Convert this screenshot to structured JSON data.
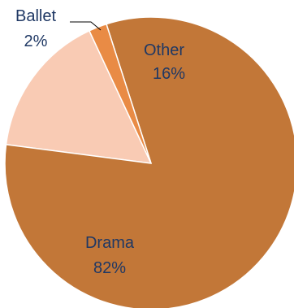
{
  "chart_data": {
    "type": "pie",
    "start_angle_deg": -25,
    "direction": "counterclockwise",
    "slices": [
      {
        "category": "Other",
        "value": 16,
        "value_label": "16%",
        "color": "#f9cbb4",
        "label_color": "#1f3864"
      },
      {
        "category": "Drama",
        "value": 82,
        "value_label": "82%",
        "color": "#c27738",
        "label_color": "#1f3864"
      },
      {
        "category": "Ballet",
        "value": 2,
        "value_label": "2%",
        "color": "#e98b45",
        "label_color": "#1f3864"
      }
    ],
    "title": "",
    "legend": false
  }
}
